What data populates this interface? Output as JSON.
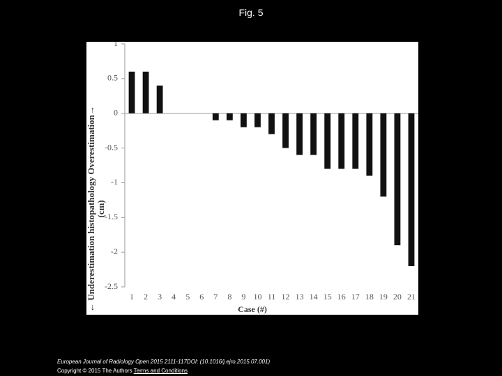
{
  "page_title": "Fig. 5",
  "chart_data": {
    "type": "bar",
    "y_label": [
      "← Underestimation histopathology Overestimation→",
      "(cm)"
    ],
    "x_label": "Case (#)",
    "categories": [
      "1",
      "2",
      "3",
      "4",
      "5",
      "6",
      "7",
      "8",
      "9",
      "10",
      "11",
      "12",
      "13",
      "14",
      "15",
      "16",
      "17",
      "18",
      "19",
      "20",
      "21"
    ],
    "values": [
      0.6,
      0.6,
      0.4,
      0,
      0,
      0,
      -0.1,
      -0.1,
      -0.2,
      -0.2,
      -0.3,
      -0.5,
      -0.6,
      -0.6,
      -0.8,
      -0.8,
      -0.8,
      -0.9,
      -1.2,
      -1.9,
      -2.2
    ],
    "color": "#111111",
    "ylim": [
      -2.5,
      1
    ],
    "yticks": [
      1,
      0.5,
      0,
      -0.5,
      -1,
      -1.5,
      -2,
      -2.5
    ],
    "grid": false
  },
  "footer": {
    "citation": "European Journal of Radiology Open 2015 2111-117DOI: (10.1016/j.ejro.2015.07.001)",
    "copyright": "Copyright © 2015 The Authors",
    "link": "Terms and Conditions"
  }
}
